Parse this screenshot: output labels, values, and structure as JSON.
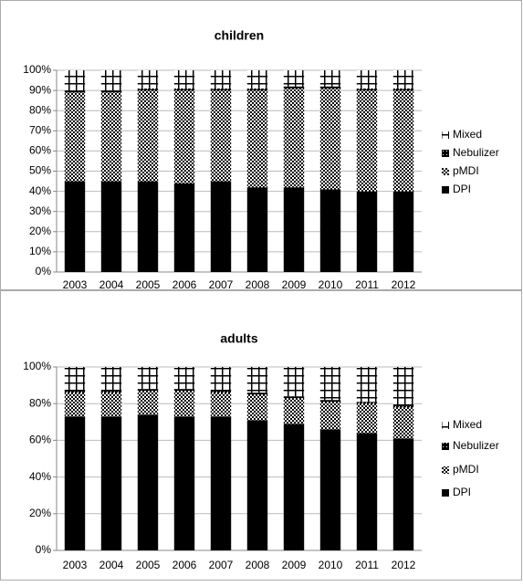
{
  "chart_data": [
    {
      "type": "bar",
      "stacked": true,
      "title": "children",
      "categories": [
        "2003",
        "2004",
        "2005",
        "2006",
        "2007",
        "2008",
        "2009",
        "2010",
        "2011",
        "2012"
      ],
      "series": [
        {
          "name": "DPI",
          "color": "#000000",
          "values": [
            45,
            45,
            45,
            44,
            45,
            42,
            42,
            41,
            40,
            40
          ]
        },
        {
          "name": "pMDI",
          "color": "#000000",
          "values": [
            44,
            44,
            45,
            46,
            45,
            48,
            49,
            50,
            50,
            50
          ]
        },
        {
          "name": "Nebulizer",
          "color": "#000000",
          "values": [
            1,
            1,
            1,
            1,
            1,
            1,
            1,
            1,
            1,
            1
          ]
        },
        {
          "name": "Mixed",
          "color": "#000000",
          "values": [
            10,
            10,
            9,
            9,
            9,
            9,
            8,
            8,
            9,
            9
          ]
        }
      ],
      "ylim": [
        0,
        100
      ],
      "yticks": [
        {
          "value": 0,
          "label": "0%"
        },
        {
          "value": 10,
          "label": "10%"
        },
        {
          "value": 20,
          "label": "20%"
        },
        {
          "value": 30,
          "label": "30%"
        },
        {
          "value": 40,
          "label": "40%"
        },
        {
          "value": 50,
          "label": "50%"
        },
        {
          "value": 60,
          "label": "60%"
        },
        {
          "value": 70,
          "label": "70%"
        },
        {
          "value": 80,
          "label": "80%"
        },
        {
          "value": 90,
          "label": "90%"
        },
        {
          "value": 100,
          "label": "100%"
        }
      ],
      "grid": true,
      "legend": "right"
    },
    {
      "type": "bar",
      "stacked": true,
      "title": "adults",
      "categories": [
        "2003",
        "2004",
        "2005",
        "2006",
        "2007",
        "2008",
        "2009",
        "2010",
        "2011",
        "2012"
      ],
      "series": [
        {
          "name": "DPI",
          "color": "#000000",
          "values": [
            73,
            73,
            74,
            73,
            73,
            71,
            69,
            66,
            64,
            61
          ]
        },
        {
          "name": "pMDI",
          "color": "#000000",
          "values": [
            13,
            13,
            13,
            14,
            13,
            14,
            14,
            15,
            16,
            17
          ]
        },
        {
          "name": "Nebulizer",
          "color": "#000000",
          "values": [
            1,
            1,
            1,
            1,
            1,
            1,
            1,
            1,
            1,
            1
          ]
        },
        {
          "name": "Mixed",
          "color": "#000000",
          "values": [
            13,
            13,
            12,
            12,
            13,
            14,
            16,
            18,
            19,
            21
          ]
        }
      ],
      "ylim": [
        0,
        100
      ],
      "yticks": [
        {
          "value": 0,
          "label": "0%"
        },
        {
          "value": 20,
          "label": "20%"
        },
        {
          "value": 40,
          "label": "40%"
        },
        {
          "value": 60,
          "label": "60%"
        },
        {
          "value": 80,
          "label": "80%"
        },
        {
          "value": 100,
          "label": "100%"
        }
      ],
      "grid": true,
      "legend": "right"
    }
  ]
}
